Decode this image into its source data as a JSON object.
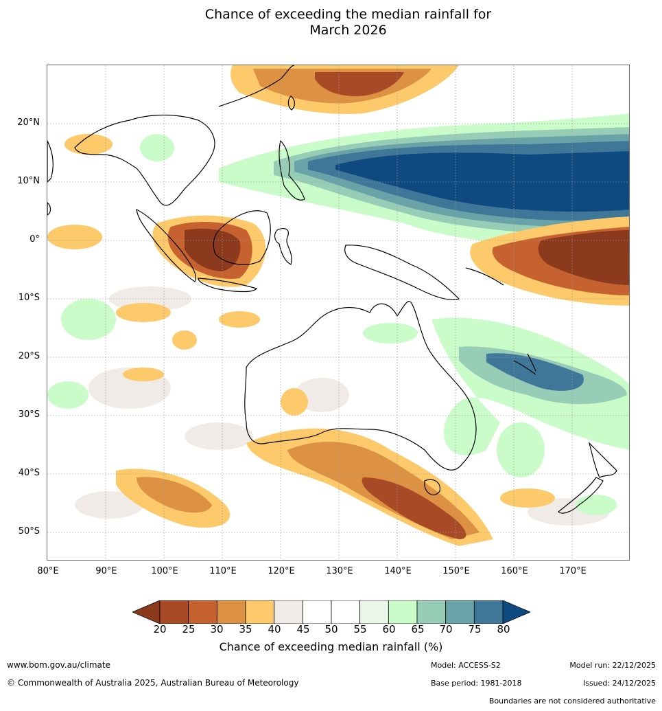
{
  "title": {
    "line1": "Chance of exceeding the median rainfall for",
    "line2": "March 2026"
  },
  "latitude_labels": [
    "20°N",
    "10°N",
    "0°",
    "10°S",
    "20°S",
    "30°S",
    "40°S",
    "50°S"
  ],
  "longitude_labels": [
    "80°E",
    "90°E",
    "100°E",
    "110°E",
    "120°E",
    "130°E",
    "140°E",
    "150°E",
    "160°E",
    "170°E"
  ],
  "legend": {
    "title": "Chance of exceeding median rainfall (%)",
    "ticks": [
      "20",
      "25",
      "30",
      "35",
      "40",
      "45",
      "50",
      "55",
      "60",
      "65",
      "70",
      "75",
      "80"
    ],
    "bins": [
      {
        "range": "<20",
        "color": "#8b3a1e"
      },
      {
        "range": "20-25",
        "color": "#a94a26"
      },
      {
        "range": "25-30",
        "color": "#c6622f"
      },
      {
        "range": "30-35",
        "color": "#dc9143"
      },
      {
        "range": "35-40",
        "color": "#fdca6b"
      },
      {
        "range": "40-45",
        "color": "#f0ebe6"
      },
      {
        "range": "45-50",
        "color": "#ffffff"
      },
      {
        "range": "50-55",
        "color": "#ffffff"
      },
      {
        "range": "55-60",
        "color": "#e9f6e8"
      },
      {
        "range": "60-65",
        "color": "#c9fcc9"
      },
      {
        "range": "65-70",
        "color": "#97cdb6"
      },
      {
        "range": "70-75",
        "color": "#69a3a8"
      },
      {
        "range": "75-80",
        "color": "#3f7799"
      },
      {
        "range": ">80",
        "color": "#0e4a80"
      }
    ]
  },
  "footer": {
    "website": "www.bom.gov.au/climate",
    "copyright": "© Commonwealth of Australia 2025, Australian Bureau of Meteorology",
    "model": "Model: ACCESS-S2",
    "base_period": "Base period: 1981-2018",
    "model_run": "Model run: 22/12/2025",
    "issued": "Issued: 24/12/2025",
    "disclaimer": "Boundaries are not considered authoritative"
  }
}
